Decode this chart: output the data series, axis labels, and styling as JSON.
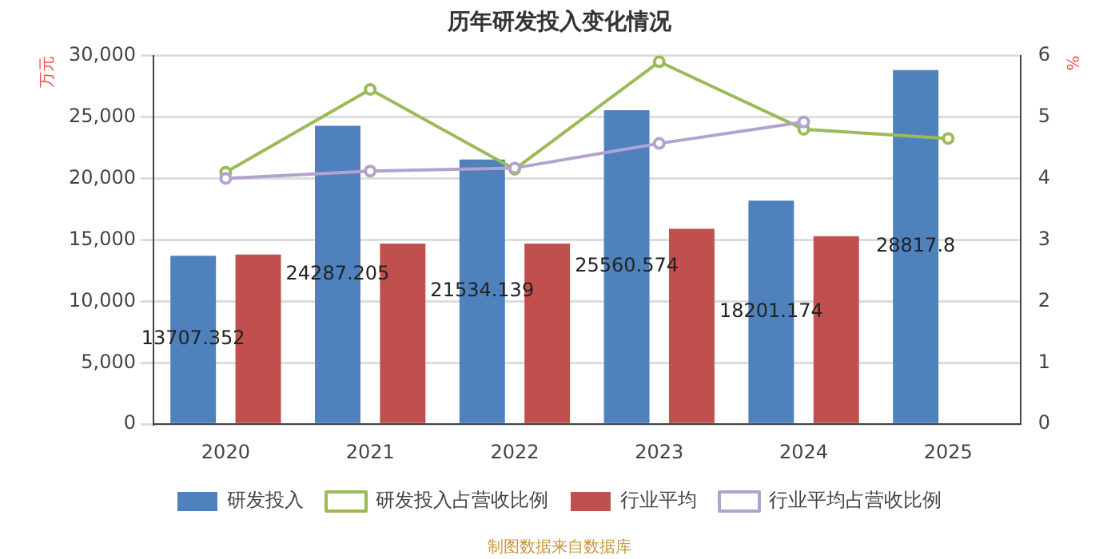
{
  "chart_data": {
    "type": "bar",
    "title": "历年研发投入变化情况",
    "ylabel": "万元",
    "y2label": "%",
    "categories": [
      "2020",
      "2021",
      "2022",
      "2023",
      "2024",
      "2025"
    ],
    "series": [
      {
        "name": "研发投入",
        "color": "#4f81bd",
        "values": [
          13707.352,
          24287.205,
          21534.139,
          25560.574,
          18201.174,
          28817.8
        ],
        "value_labels": [
          "13707.352",
          "24287.205",
          "21534.139",
          "25560.574",
          "18201.174",
          "28817.8"
        ]
      },
      {
        "name": "研发投入占营收比例",
        "type": "line",
        "axis": "y2",
        "color": "#9bbb59",
        "values": [
          4.1,
          5.45,
          4.15,
          5.9,
          4.8,
          4.65
        ]
      },
      {
        "name": "行业平均",
        "color": "#c0504d",
        "values": [
          13800,
          14700,
          14700,
          15900,
          15300,
          null
        ]
      },
      {
        "name": "行业平均占营收比例",
        "type": "line",
        "axis": "y2",
        "color": "#b3a2d0",
        "values": [
          4.0,
          4.12,
          4.17,
          4.57,
          4.92,
          null
        ]
      }
    ],
    "ylim": [
      0,
      30000
    ],
    "yticks": [
      0,
      {
        "value": 5000,
        "label": "5,000"
      },
      {
        "value": 10000,
        "label": "10,000"
      },
      {
        "value": 15000,
        "label": "15,000"
      },
      {
        "value": 20000,
        "label": "20,000"
      },
      {
        "value": 25000,
        "label": "25,000"
      },
      {
        "value": 30000,
        "label": "30,000"
      }
    ],
    "y2lim": [
      0,
      6
    ],
    "y2ticks": [
      0,
      1,
      2,
      3,
      4,
      5,
      6
    ],
    "grid": "y",
    "legend": "bottom",
    "marker": "circle",
    "annotations": [
      "制图数据来自数据库"
    ]
  }
}
